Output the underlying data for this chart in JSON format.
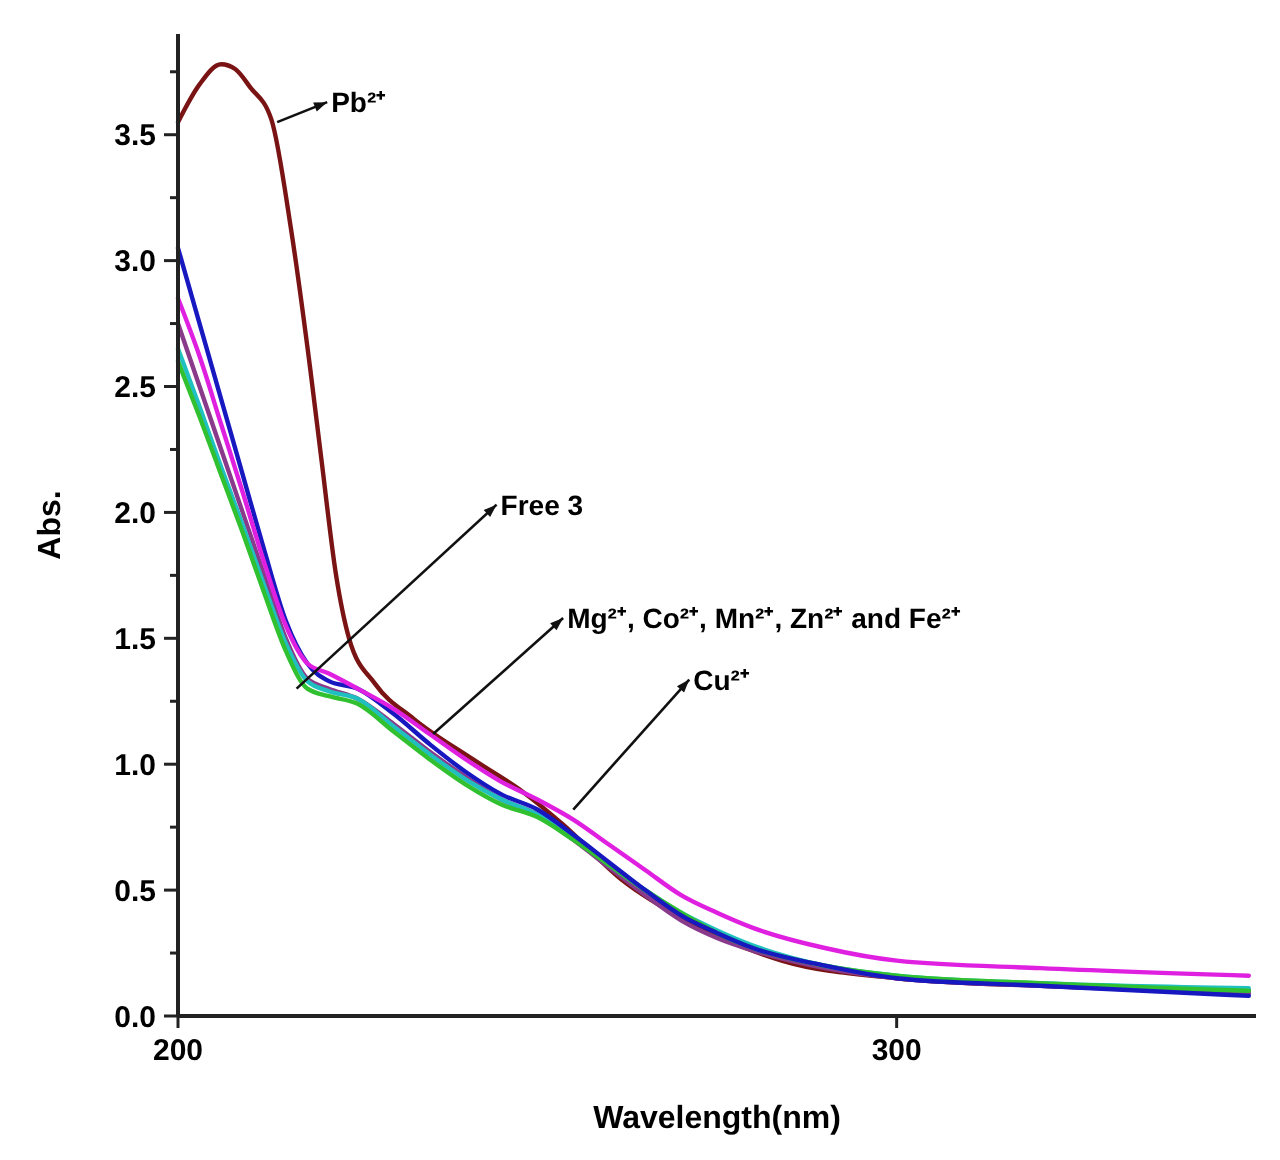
{
  "chart_data": {
    "type": "line",
    "xlabel": "Wavelength(nm)",
    "ylabel": "Abs.",
    "xlim": [
      200,
      350
    ],
    "ylim": [
      0,
      3.9
    ],
    "xticks": [
      200,
      300
    ],
    "yticks": [
      {
        "value": 0,
        "label": "0.0"
      },
      {
        "value": 0.25,
        "label": null
      },
      0.5,
      {
        "value": 0.75,
        "label": null
      },
      {
        "value": 1,
        "label": "1.0"
      },
      {
        "value": 1.25,
        "label": null
      },
      1.5,
      {
        "value": 1.75,
        "label": null
      },
      {
        "value": 2,
        "label": "2.0"
      },
      {
        "value": 2.25,
        "label": null
      },
      2.5,
      {
        "value": 2.75,
        "label": null
      },
      {
        "value": 3,
        "label": "3.0"
      },
      {
        "value": 3.25,
        "label": null
      },
      3.5,
      {
        "value": 3.75,
        "label": null
      }
    ],
    "grid": false,
    "marker": "none",
    "line_style": "solid",
    "x": [
      200,
      203,
      206,
      209,
      212,
      215,
      218,
      221,
      225,
      230,
      235,
      240,
      245,
      250,
      255,
      260,
      265,
      270,
      275,
      280,
      290,
      300,
      320,
      349
    ],
    "series": [
      {
        "color": "#7a1414",
        "x": [
          200,
          203,
          206,
          208,
          210,
          213,
          215.7,
          218.4,
          220,
          222,
          223.8,
          227.4,
          232.8,
          241,
          248,
          253.6,
          261.8,
          270.7,
          284,
          300,
          320,
          349
        ],
        "values": [
          3.55,
          3.7,
          3.78,
          3.76,
          3.69,
          3.56,
          3.13,
          2.57,
          2.2,
          1.75,
          1.5,
          1.32,
          1.18,
          1.02,
          0.89,
          0.76,
          0.54,
          0.38,
          0.22,
          0.15,
          0.12,
          0.1
        ]
      },
      {
        "color": "#8a3a8a",
        "values": [
          2.75,
          2.5,
          2.25,
          2.0,
          1.75,
          1.5,
          1.34,
          1.3,
          1.26,
          1.16,
          1.05,
          0.95,
          0.86,
          0.8,
          0.7,
          0.59,
          0.48,
          0.38,
          0.31,
          0.26,
          0.19,
          0.15,
          0.12,
          0.09
        ]
      },
      {
        "color": "#20c0c0",
        "values": [
          2.65,
          2.42,
          2.18,
          1.95,
          1.71,
          1.48,
          1.33,
          1.29,
          1.26,
          1.15,
          1.04,
          0.94,
          0.86,
          0.8,
          0.71,
          0.6,
          0.5,
          0.41,
          0.34,
          0.28,
          0.2,
          0.16,
          0.13,
          0.11
        ]
      },
      {
        "color": "#30c030",
        "values": [
          2.6,
          2.38,
          2.15,
          1.92,
          1.68,
          1.45,
          1.3,
          1.27,
          1.24,
          1.13,
          1.02,
          0.92,
          0.84,
          0.79,
          0.7,
          0.6,
          0.5,
          0.41,
          0.33,
          0.27,
          0.2,
          0.16,
          0.13,
          0.1
        ]
      },
      {
        "color": "#1818c0",
        "values": [
          3.05,
          2.75,
          2.45,
          2.15,
          1.85,
          1.57,
          1.4,
          1.33,
          1.3,
          1.2,
          1.08,
          0.97,
          0.88,
          0.82,
          0.72,
          0.61,
          0.5,
          0.4,
          0.33,
          0.27,
          0.2,
          0.15,
          0.12,
          0.08
        ]
      },
      {
        "color": "#e020e0",
        "values": [
          2.85,
          2.62,
          2.35,
          2.08,
          1.8,
          1.55,
          1.4,
          1.36,
          1.3,
          1.22,
          1.12,
          1.02,
          0.93,
          0.86,
          0.78,
          0.68,
          0.58,
          0.48,
          0.41,
          0.35,
          0.27,
          0.22,
          0.19,
          0.16
        ]
      }
    ],
    "annotations": [
      {
        "text": "Pb²⁺",
        "x": 213.8,
        "y": 3.55
      },
      {
        "text": "Free 3",
        "x": 216.5,
        "y": 1.3
      },
      {
        "text": "Mg²⁺, Co²⁺, Mn²⁺, Zn²⁺ and Fe²⁺",
        "x": 235.5,
        "y": 1.12
      },
      {
        "text": "Cu²⁺",
        "x": 255,
        "y": 0.82
      }
    ]
  }
}
